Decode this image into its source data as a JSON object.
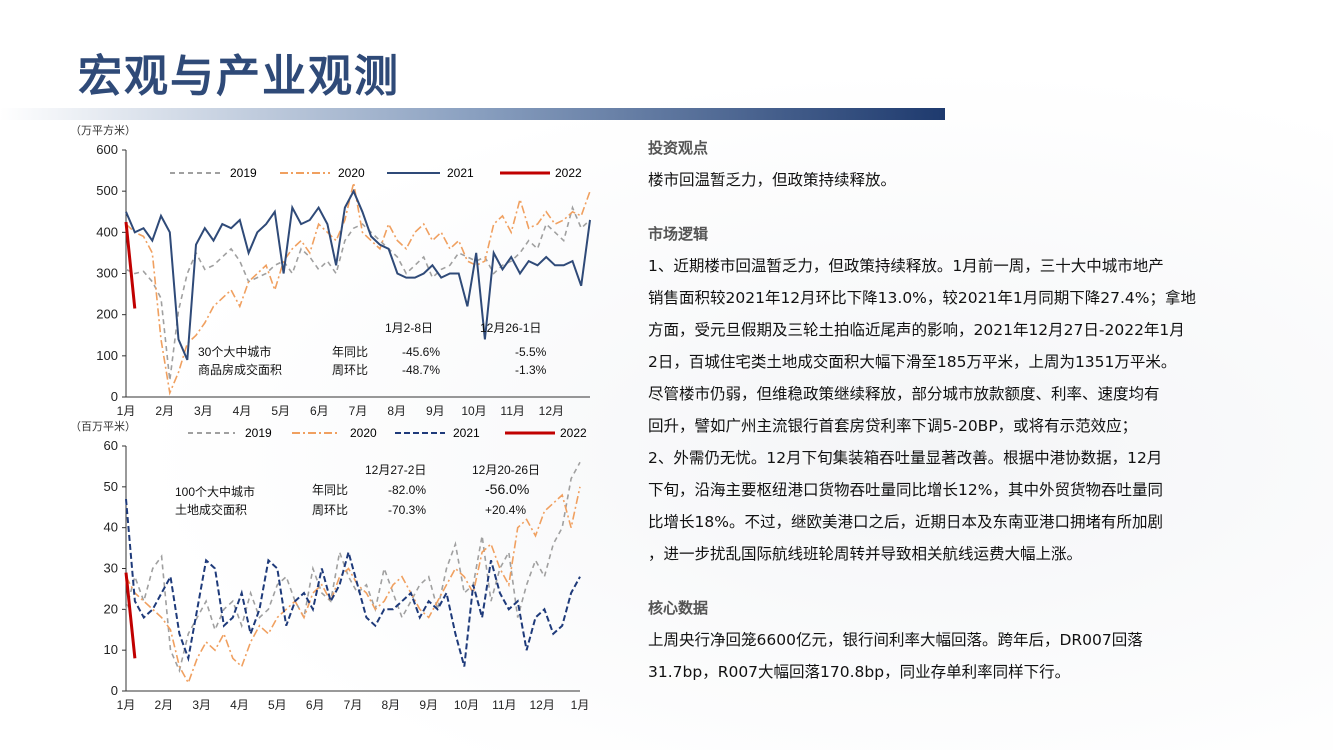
{
  "slide": {
    "title": "宏观与产业观测"
  },
  "panel": {
    "section1_heading": "投资观点",
    "section1_text": "楼市回温暂乏力，但政策持续释放。",
    "section2_heading": "市场逻辑",
    "section2_lines": [
      "1、近期楼市回温暂乏力，但政策持续释放。1月前一周，三十大中城市地产",
      "销售面积较2021年12月环比下降13.0%，较2021年1月同期下降27.4%；拿地",
      "方面，受元旦假期及三轮土拍临近尾声的影响，2021年12月27日-2022年1月",
      "2日，百城住宅类土地成交面积大幅下滑至185万平米，上周为1351万平米。",
      "尽管楼市仍弱，但维稳政策继续释放，部分城市放款额度、利率、速度均有",
      "回升，譬如广州主流银行首套房贷利率下调5-20BP，或将有示范效应；",
      "2、外需仍无忧。12月下旬集装箱吞吐量显著改善。根据中港协数据，12月",
      "下旬，沿海主要枢纽港口货物吞吐量同比增长12%，其中外贸货物吞吐量同",
      "比增长18%。不过，继欧美港口之后，近期日本及东南亚港口拥堵有所加剧",
      "，进一步扰乱国际航线班轮周转并导致相关航线运费大幅上涨。"
    ],
    "section3_heading": "核心数据",
    "section3_lines": [
      "上周央行净回笼6600亿元，银行间利率大幅回落。跨年后，DR007回落",
      "31.7bp，R007大幅回落170.8bp，同业存单利率同样下行。"
    ]
  },
  "colors": {
    "title": "#2f4a78",
    "s2019": "#a0a0a0",
    "s2020": "#f0a060",
    "s2021": "#2f4a78",
    "s2022": "#c00000"
  },
  "chart_data": [
    {
      "type": "line",
      "ylabel": "（万平方米）",
      "ylim": [
        0,
        600
      ],
      "yticks": [
        "0",
        "100",
        "200",
        "300",
        "400",
        "500",
        "600"
      ],
      "xticks": [
        "1月",
        "2月",
        "3月",
        "4月",
        "5月",
        "6月",
        "7月",
        "8月",
        "9月",
        "10月",
        "11月",
        "12月"
      ],
      "legend": [
        "2019",
        "2020",
        "2021",
        "2022"
      ],
      "annotations": {
        "box_title_1": "30个大中城市",
        "box_title_2": "商品房成交面积",
        "col1_header": "1月2-8日",
        "col2_header": "12月26-1日",
        "row1_label": "年同比",
        "row2_label": "周环比",
        "row1_col1": "-45.6%",
        "row2_col1": "-48.7%",
        "row1_col2": "-5.5%",
        "row2_col2": "-1.3%"
      },
      "series": [
        {
          "name": "2019",
          "values": [
            310,
            300,
            305,
            280,
            240,
            40,
            210,
            300,
            350,
            310,
            320,
            340,
            360,
            330,
            280,
            290,
            300,
            320,
            330,
            300,
            360,
            340,
            310,
            330,
            300,
            380,
            410,
            420,
            400,
            380,
            360,
            340,
            300,
            320,
            340,
            290,
            310,
            320,
            350,
            340,
            330,
            340,
            300,
            320,
            330,
            350,
            380,
            360,
            420,
            400,
            380,
            460,
            410,
            430
          ]
        },
        {
          "name": "2020",
          "values": [
            420,
            400,
            390,
            350,
            140,
            10,
            60,
            130,
            150,
            180,
            220,
            240,
            260,
            220,
            280,
            300,
            320,
            260,
            330,
            360,
            380,
            350,
            420,
            400,
            380,
            430,
            520,
            400,
            380,
            360,
            420,
            380,
            360,
            400,
            420,
            380,
            400,
            360,
            380,
            330,
            320,
            330,
            420,
            440,
            400,
            480,
            410,
            420,
            450,
            420,
            430,
            450,
            440,
            500
          ]
        },
        {
          "name": "2021",
          "values": [
            450,
            400,
            410,
            380,
            440,
            400,
            140,
            90,
            370,
            410,
            380,
            420,
            410,
            430,
            350,
            400,
            420,
            450,
            300,
            460,
            420,
            430,
            460,
            420,
            320,
            460,
            500,
            450,
            390,
            370,
            360,
            300,
            290,
            290,
            300,
            320,
            290,
            300,
            300,
            220,
            350,
            140,
            350,
            310,
            340,
            300,
            330,
            320,
            340,
            320,
            320,
            330,
            270,
            430
          ]
        },
        {
          "name": "2022",
          "values": [
            425,
            215
          ]
        }
      ]
    },
    {
      "type": "line",
      "ylabel": "（百万平米）",
      "ylim": [
        0,
        60
      ],
      "yticks": [
        "0",
        "10",
        "20",
        "30",
        "40",
        "50",
        "60"
      ],
      "xticks": [
        "1月",
        "2月",
        "3月",
        "4月",
        "5月",
        "6月",
        "7月",
        "8月",
        "9月",
        "10月",
        "11月",
        "12月",
        "1月"
      ],
      "legend": [
        "2019",
        "2020",
        "2021",
        "2022"
      ],
      "annotations": {
        "box_title_1": "100个大中城市",
        "box_title_2": "土地成交面积",
        "col1_header": "12月27-2日",
        "col2_header": "12月20-26日",
        "row1_label": "年同比",
        "row2_label": "周环比",
        "row1_col1": "-82.0%",
        "row2_col1": "-70.3%",
        "row1_col2": "-56.0%",
        "row2_col2": "+20.4%"
      },
      "series": [
        {
          "name": "2019",
          "values": [
            20,
            28,
            22,
            30,
            33,
            10,
            5,
            14,
            18,
            22,
            15,
            20,
            22,
            16,
            24,
            18,
            20,
            26,
            28,
            22,
            18,
            30,
            24,
            22,
            34,
            28,
            24,
            26,
            20,
            30,
            24,
            18,
            22,
            26,
            28,
            20,
            30,
            36,
            24,
            26,
            38,
            22,
            30,
            34,
            18,
            26,
            32,
            28,
            36,
            40,
            52,
            56
          ]
        },
        {
          "name": "2020",
          "values": [
            28,
            24,
            22,
            20,
            18,
            15,
            6,
            2,
            8,
            12,
            10,
            14,
            8,
            6,
            12,
            16,
            14,
            18,
            20,
            22,
            18,
            24,
            26,
            22,
            28,
            30,
            26,
            24,
            20,
            22,
            26,
            28,
            24,
            20,
            18,
            22,
            26,
            30,
            28,
            24,
            34,
            36,
            30,
            26,
            40,
            42,
            38,
            44,
            46,
            48,
            40,
            50
          ]
        },
        {
          "name": "2021",
          "values": [
            47,
            22,
            18,
            20,
            24,
            28,
            14,
            8,
            20,
            32,
            30,
            16,
            18,
            24,
            14,
            20,
            32,
            30,
            16,
            22,
            24,
            20,
            30,
            22,
            26,
            34,
            26,
            18,
            16,
            20,
            20,
            22,
            24,
            18,
            22,
            20,
            24,
            14,
            6,
            26,
            18,
            32,
            24,
            20,
            22,
            10,
            18,
            20,
            14,
            16,
            24,
            28
          ]
        },
        {
          "name": "2022",
          "values": [
            29,
            8
          ]
        }
      ]
    }
  ]
}
